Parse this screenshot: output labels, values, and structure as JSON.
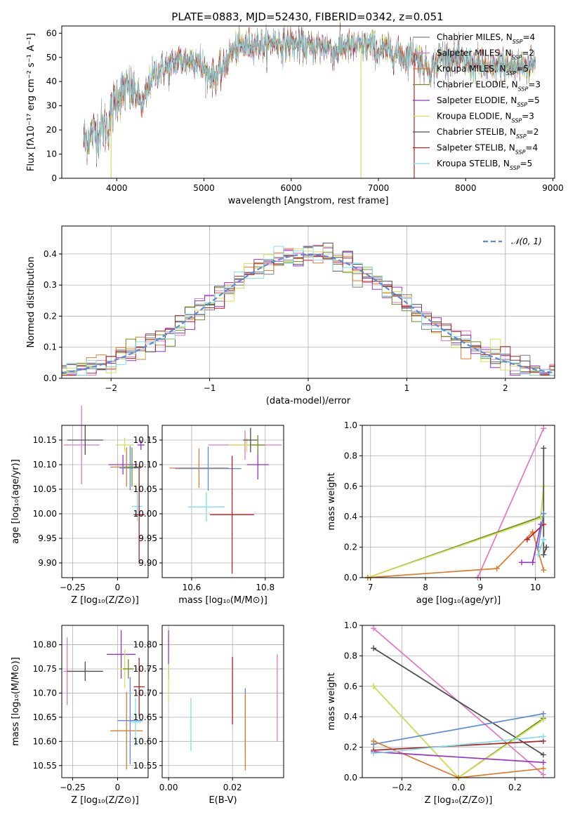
{
  "title": "PLATE=0883, MJD=52430, FIBERID=0342, z=0.051",
  "chart_data": [
    {
      "id": "spectrum",
      "type": "line",
      "xlabel": "wavelength [Angstrom, rest frame]",
      "ylabel": "Flux [fλ10⁻¹⁷ erg cm⁻² s⁻¹ A⁻¹]",
      "xlim": [
        3370,
        9020
      ],
      "ylim": [
        0,
        63
      ],
      "xticks": [
        4000,
        5000,
        6000,
        7000,
        8000,
        9000
      ],
      "yticks": [
        0,
        10,
        20,
        30,
        40,
        50,
        60
      ],
      "grid": false,
      "legend_position": "right",
      "series": [
        {
          "name": "Chabrier MILES, N_SSP=4",
          "legend_main": "Chabrier MILES, N",
          "legend_sub": "SSP",
          "legend_end": "=4",
          "color": "#7f7f7f"
        },
        {
          "name": "Salpeter MILES, N_SSP=2",
          "legend_main": "Salpeter MILES, N",
          "legend_sub": "SSP",
          "legend_end": "=2",
          "color": "#e377c2"
        },
        {
          "name": "Kroupa MILES, N_SSP=5",
          "legend_main": "Kroupa MILES, N",
          "legend_sub": "SSP",
          "legend_end": "=5",
          "color": "#e07b2a"
        },
        {
          "name": "Chabrier ELODIE, N_SSP=3",
          "legend_main": "Chabrier ELODIE, N",
          "legend_sub": "SSP",
          "legend_end": "=3",
          "color": "#6b8e23"
        },
        {
          "name": "Salpeter ELODIE, N_SSP=5",
          "legend_main": "Salpeter ELODIE, N",
          "legend_sub": "SSP",
          "legend_end": "=5",
          "color": "#9932cc"
        },
        {
          "name": "Kroupa ELODIE, N_SSP=3",
          "legend_main": "Kroupa ELODIE, N",
          "legend_sub": "SSP",
          "legend_end": "=3",
          "color": "#d4e157"
        },
        {
          "name": "Chabrier STELIB, N_SSP=2",
          "legend_main": "Chabrier STELIB, N",
          "legend_sub": "SSP",
          "legend_end": "=2",
          "color": "#4d4d4d"
        },
        {
          "name": "Salpeter STELIB, N_SSP=4",
          "legend_main": "Salpeter STELIB, N",
          "legend_sub": "SSP",
          "legend_end": "=4",
          "color": "#b22222"
        },
        {
          "name": "Kroupa STELIB, N_SSP=5",
          "legend_main": "Kroupa STELIB, N",
          "legend_sub": "SSP",
          "legend_end": "=5",
          "color": "#80deea"
        }
      ],
      "spectrum_shape": {
        "x": [
          3620,
          3700,
          3800,
          3900,
          3950,
          4000,
          4100,
          4200,
          4300,
          4400,
          4500,
          4600,
          4700,
          4800,
          4900,
          5000,
          5100,
          5200,
          5300,
          5400,
          5500,
          5600,
          5700,
          5800,
          5900,
          6000,
          6100,
          6200,
          6300,
          6400,
          6500,
          6600,
          6700,
          6800,
          6900,
          7000,
          7100,
          7200,
          7300,
          7400,
          7500,
          7600,
          7700,
          7800,
          7900,
          8000,
          8100,
          8200,
          8300,
          8400,
          8500,
          8600,
          8700,
          8800
        ],
        "y": [
          16,
          18,
          20,
          22,
          28,
          34,
          37,
          36,
          30,
          42,
          45,
          46,
          49,
          48,
          50,
          45,
          42,
          44,
          52,
          54,
          55,
          56,
          54,
          57,
          55,
          56,
          55,
          54,
          54,
          55,
          52,
          55,
          54,
          55,
          55,
          53,
          53,
          52,
          50,
          52,
          48,
          45,
          50,
          50,
          49,
          48,
          47,
          46,
          45,
          47,
          46,
          46,
          47,
          47
        ]
      }
    },
    {
      "id": "residuals",
      "type": "step",
      "xlabel": "(data-model)/error",
      "ylabel": "Normed distribution",
      "xlim": [
        -2.5,
        2.5
      ],
      "ylim": [
        0,
        0.49
      ],
      "xticks": [
        -2,
        -1,
        0,
        1,
        2
      ],
      "yticks": [
        0.0,
        0.1,
        0.2,
        0.3,
        0.4
      ],
      "grid": true,
      "legend_label": "𝒩(0, 1)",
      "legend_position": "top-right",
      "gaussian_color": "#5b8bd9",
      "bin_width": 0.1
    },
    {
      "id": "age_vs_Z",
      "type": "errorbar",
      "xlabel": "Z [log₁₀(Z/Z⊙)]",
      "ylabel": "age  [log₁₀(age/yr)]",
      "xlim": [
        -0.31,
        0.17
      ],
      "ylim": [
        9.87,
        10.18
      ],
      "xticks": [
        -0.25,
        0.0
      ],
      "yticks": [
        9.9,
        9.95,
        10.0,
        10.05,
        10.1,
        10.15
      ],
      "grid": true,
      "points": [
        {
          "x": -0.2,
          "y": 10.14,
          "xerr": 0.1,
          "yerr": 0.08,
          "color": "#e377c2"
        },
        {
          "x": -0.18,
          "y": 10.15,
          "xerr": 0.1,
          "yerr": 0.03,
          "color": "#4d4d4d"
        },
        {
          "x": 0.03,
          "y": 10.1,
          "xerr": 0.08,
          "yerr": 0.02,
          "color": "#9932cc"
        },
        {
          "x": 0.07,
          "y": 10.093,
          "xerr": 0.06,
          "yerr": 0.045,
          "color": "#5b8bd9"
        },
        {
          "x": 0.05,
          "y": 10.095,
          "xerr": 0.09,
          "yerr": 0.04,
          "color": "#e07b2a"
        },
        {
          "x": 0.04,
          "y": 10.14,
          "xerr": 0.05,
          "yerr": 0.015,
          "color": "#d4e157"
        },
        {
          "x": 0.08,
          "y": 10.095,
          "xerr": 0.05,
          "yerr": 0.04,
          "color": "#6b8e23"
        },
        {
          "x": 0.11,
          "y": 10.015,
          "xerr": 0.03,
          "yerr": 0.03,
          "color": "#80deea"
        },
        {
          "x": 0.12,
          "y": 9.998,
          "xerr": 0.03,
          "yerr": 0.1,
          "color": "#b22222"
        },
        {
          "x": 0.13,
          "y": 10.14,
          "xerr": 0.02,
          "yerr": 0.01,
          "color": "#9932cc"
        }
      ]
    },
    {
      "id": "age_vs_mass",
      "type": "errorbar",
      "xlabel": "mass [log₁₀(M/M⊙)]",
      "ylabel": "",
      "xlim": [
        10.52,
        10.85
      ],
      "ylim": [
        9.87,
        10.18
      ],
      "xticks": [
        10.6,
        10.8
      ],
      "yticks": [
        9.9,
        9.95,
        10.0,
        10.05,
        10.1,
        10.15
      ],
      "grid": true,
      "points": [
        {
          "x": 10.62,
          "y": 10.093,
          "xerr": 0.08,
          "yerr": 0.04,
          "color": "#e07b2a"
        },
        {
          "x": 10.645,
          "y": 10.092,
          "xerr": 0.09,
          "yerr": 0.045,
          "color": "#5b8bd9"
        },
        {
          "x": 10.64,
          "y": 10.014,
          "xerr": 0.05,
          "yerr": 0.03,
          "color": "#80deea"
        },
        {
          "x": 10.71,
          "y": 9.998,
          "xerr": 0.06,
          "yerr": 0.12,
          "color": "#b22222"
        },
        {
          "x": 10.745,
          "y": 10.14,
          "xerr": 0.1,
          "yerr": 0.03,
          "color": "#e377c2"
        },
        {
          "x": 10.75,
          "y": 10.14,
          "xerr": 0.05,
          "yerr": 0.015,
          "color": "#d4e157"
        },
        {
          "x": 10.76,
          "y": 10.15,
          "xerr": 0.02,
          "yerr": 0.025,
          "color": "#4d4d4d"
        },
        {
          "x": 10.78,
          "y": 10.1,
          "xerr": 0.03,
          "yerr": 0.03,
          "color": "#9932cc"
        },
        {
          "x": 10.78,
          "y": 10.14,
          "xerr": 0.02,
          "yerr": 0.02,
          "color": "#6b8e23"
        }
      ]
    },
    {
      "id": "weight_vs_age",
      "type": "line",
      "xlabel": "age  [log₁₀(age/yr)]",
      "ylabel": "mass weight",
      "xlim": [
        6.85,
        10.35
      ],
      "ylim": [
        0,
        1
      ],
      "xticks": [
        7,
        8,
        9,
        10
      ],
      "yticks": [
        0.0,
        0.2,
        0.4,
        0.6,
        0.8,
        1.0
      ],
      "grid": true,
      "series": [
        {
          "color": "#e377c2",
          "x": [
            8.95,
            10.15
          ],
          "y": [
            0.0,
            0.98
          ]
        },
        {
          "color": "#6b8e23",
          "x": [
            6.95,
            10.1,
            10.15
          ],
          "y": [
            0.0,
            0.4,
            0.6
          ]
        },
        {
          "color": "#d4e157",
          "x": [
            6.95,
            10.1,
            10.15
          ],
          "y": [
            0.0,
            0.39,
            0.6
          ]
        },
        {
          "color": "#e07b2a",
          "x": [
            6.95,
            9.3,
            9.95,
            10.15
          ],
          "y": [
            0.0,
            0.06,
            0.3,
            0.05
          ]
        },
        {
          "color": "#4d4d4d",
          "x": [
            10.15,
            10.15,
            10.2
          ],
          "y": [
            0.85,
            0.15,
            0.2
          ]
        },
        {
          "color": "#9932cc",
          "x": [
            9.75,
            9.95,
            10.1
          ],
          "y": [
            0.1,
            0.1,
            0.35
          ]
        },
        {
          "color": "#b22222",
          "x": [
            9.85,
            10.15
          ],
          "y": [
            0.25,
            0.35
          ]
        },
        {
          "color": "#80deea",
          "x": [
            10.05,
            10.15
          ],
          "y": [
            0.15,
            0.25
          ]
        },
        {
          "color": "#5b8bd9",
          "x": [
            10.05,
            10.15
          ],
          "y": [
            0.2,
            0.42
          ]
        }
      ]
    },
    {
      "id": "mass_vs_Z",
      "type": "errorbar",
      "xlabel": "Z [log₁₀(Z/Z⊙)]",
      "ylabel": "mass [log₁₀(M/M⊙)]",
      "xlim": [
        -0.31,
        0.17
      ],
      "ylim": [
        10.525,
        10.84
      ],
      "xticks": [
        -0.25,
        0.0
      ],
      "yticks": [
        10.55,
        10.6,
        10.65,
        10.7,
        10.75,
        10.8
      ],
      "grid": true,
      "points": [
        {
          "x": -0.28,
          "y": 10.745,
          "xerr": 0.02,
          "yerr": 0.07,
          "color": "#e377c2"
        },
        {
          "x": -0.18,
          "y": 10.745,
          "xerr": 0.1,
          "yerr": 0.02,
          "color": "#4d4d4d"
        },
        {
          "x": 0.02,
          "y": 10.78,
          "xerr": 0.08,
          "yerr": 0.05,
          "color": "#9932cc"
        },
        {
          "x": 0.04,
          "y": 10.75,
          "xerr": 0.05,
          "yerr": 0.04,
          "color": "#d4e157"
        },
        {
          "x": 0.07,
          "y": 10.643,
          "xerr": 0.07,
          "yerr": 0.09,
          "color": "#5b8bd9"
        },
        {
          "x": 0.05,
          "y": 10.622,
          "xerr": 0.09,
          "yerr": 0.08,
          "color": "#e07b2a"
        },
        {
          "x": 0.1,
          "y": 10.64,
          "xerr": 0.03,
          "yerr": 0.05,
          "color": "#80deea"
        },
        {
          "x": 0.12,
          "y": 10.713,
          "xerr": 0.03,
          "yerr": 0.06,
          "color": "#b22222"
        },
        {
          "x": 0.06,
          "y": 10.75,
          "xerr": 0.03,
          "yerr": 0.02,
          "color": "#6b8e23"
        }
      ]
    },
    {
      "id": "mass_vs_ebv",
      "type": "errorbar",
      "xlabel": "E(B-V)",
      "ylabel": "",
      "xlim": [
        -0.002,
        0.036
      ],
      "ylim": [
        10.525,
        10.84
      ],
      "xticks": [
        0.0,
        0.02
      ],
      "yticks": [
        10.55,
        10.6,
        10.65,
        10.7,
        10.75,
        10.8
      ],
      "grid": true,
      "points": [
        {
          "x": 0.0,
          "y": 10.78,
          "xerr": 0,
          "yerr": 0.05,
          "color": "#9932cc"
        },
        {
          "x": 0.0,
          "y": 10.72,
          "xerr": 0,
          "yerr": 0.04,
          "color": "#d4e157"
        },
        {
          "x": 0.007,
          "y": 10.635,
          "xerr": 0,
          "yerr": 0.055,
          "color": "#80deea"
        },
        {
          "x": 0.02,
          "y": 10.705,
          "xerr": 0,
          "yerr": 0.07,
          "color": "#b22222"
        },
        {
          "x": 0.024,
          "y": 10.64,
          "xerr": 0,
          "yerr": 0.07,
          "color": "#5b8bd9"
        },
        {
          "x": 0.024,
          "y": 10.62,
          "xerr": 0,
          "yerr": 0.08,
          "color": "#e07b2a"
        },
        {
          "x": 0.034,
          "y": 10.69,
          "xerr": 0,
          "yerr": 0.09,
          "color": "#e377c2"
        }
      ]
    },
    {
      "id": "weight_vs_Z",
      "type": "line",
      "xlabel": "Z [log₁₀(Z/Z⊙)]",
      "ylabel": "mass weight",
      "xlim": [
        -0.34,
        0.34
      ],
      "ylim": [
        0,
        1
      ],
      "xticks": [
        -0.2,
        0.0,
        0.2
      ],
      "yticks": [
        0.0,
        0.2,
        0.4,
        0.6,
        0.8,
        1.0
      ],
      "grid": true,
      "series": [
        {
          "color": "#e377c2",
          "x": [
            -0.3,
            0.3
          ],
          "y": [
            0.98,
            0.02
          ]
        },
        {
          "color": "#4d4d4d",
          "x": [
            -0.3,
            0.3
          ],
          "y": [
            0.85,
            0.15
          ]
        },
        {
          "color": "#6b8e23",
          "x": [
            -0.3,
            0.0,
            0.3
          ],
          "y": [
            0.6,
            0.0,
            0.39
          ]
        },
        {
          "color": "#d4e157",
          "x": [
            -0.3,
            0.0,
            0.3
          ],
          "y": [
            0.6,
            0.0,
            0.38
          ]
        },
        {
          "color": "#5b8bd9",
          "x": [
            -0.3,
            0.3
          ],
          "y": [
            0.22,
            0.42
          ]
        },
        {
          "color": "#e07b2a",
          "x": [
            -0.3,
            0.0,
            0.3
          ],
          "y": [
            0.24,
            0.0,
            0.06
          ]
        },
        {
          "color": "#9932cc",
          "x": [
            -0.3,
            0.3
          ],
          "y": [
            0.17,
            0.1
          ]
        },
        {
          "color": "#b22222",
          "x": [
            -0.3,
            0.3
          ],
          "y": [
            0.18,
            0.24
          ]
        },
        {
          "color": "#80deea",
          "x": [
            -0.3,
            0.3
          ],
          "y": [
            0.16,
            0.27
          ]
        }
      ]
    }
  ]
}
